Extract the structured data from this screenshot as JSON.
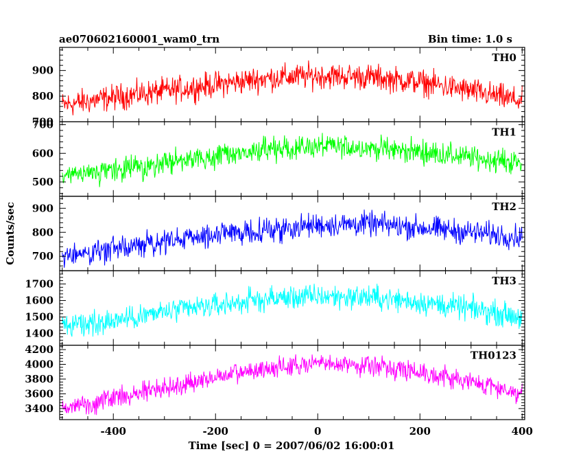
{
  "header": {
    "title": "ae070602160001_wam0_trn",
    "bin_time": "Bin time: 1.0 s"
  },
  "chart_data": {
    "type": "line",
    "xlabel": "Time [sec] 0 = 2007/06/02 16:00:01",
    "ylabel": "Counts/sec",
    "xlim": [
      -505,
      405
    ],
    "xticks": [
      -400,
      -200,
      0,
      200,
      400
    ],
    "panels": [
      {
        "name": "TH0",
        "color": "#ff0000",
        "ylim": [
          700,
          990
        ],
        "yticks": [
          700,
          800,
          900
        ],
        "trend": {
          "x": [
            -500,
            -400,
            -300,
            -200,
            -100,
            0,
            100,
            200,
            300,
            400
          ],
          "y": [
            765,
            795,
            820,
            845,
            870,
            880,
            875,
            855,
            820,
            780
          ]
        },
        "noise_amplitude": 55
      },
      {
        "name": "TH1",
        "color": "#00ff00",
        "ylim": [
          450,
          710
        ],
        "yticks": [
          500,
          600,
          700
        ],
        "trend": {
          "x": [
            -500,
            -400,
            -300,
            -200,
            -100,
            0,
            100,
            200,
            300,
            400
          ],
          "y": [
            515,
            540,
            565,
            590,
            610,
            625,
            620,
            605,
            585,
            565
          ]
        },
        "noise_amplitude": 45
      },
      {
        "name": "TH2",
        "color": "#0000ff",
        "ylim": [
          640,
          950
        ],
        "yticks": [
          700,
          800,
          900
        ],
        "trend": {
          "x": [
            -500,
            -400,
            -300,
            -200,
            -100,
            0,
            100,
            200,
            300,
            400
          ],
          "y": [
            700,
            730,
            760,
            790,
            810,
            830,
            835,
            820,
            800,
            780
          ]
        },
        "noise_amplitude": 55
      },
      {
        "name": "TH3",
        "color": "#00ffff",
        "ylim": [
          1330,
          1780
        ],
        "yticks": [
          1400,
          1500,
          1600,
          1700
        ],
        "trend": {
          "x": [
            -500,
            -400,
            -300,
            -200,
            -100,
            0,
            100,
            200,
            300,
            400
          ],
          "y": [
            1440,
            1480,
            1530,
            1570,
            1610,
            1625,
            1620,
            1590,
            1550,
            1500
          ]
        },
        "noise_amplitude": 80
      },
      {
        "name": "TH0123",
        "color": "#ff00ff",
        "ylim": [
          3250,
          4260
        ],
        "yticks": [
          3400,
          3600,
          3800,
          4000,
          4200
        ],
        "trend": {
          "x": [
            -500,
            -400,
            -300,
            -200,
            -100,
            0,
            100,
            200,
            300,
            400
          ],
          "y": [
            3400,
            3540,
            3680,
            3820,
            3940,
            4010,
            3990,
            3900,
            3760,
            3610
          ]
        },
        "noise_amplitude": 150
      }
    ]
  }
}
